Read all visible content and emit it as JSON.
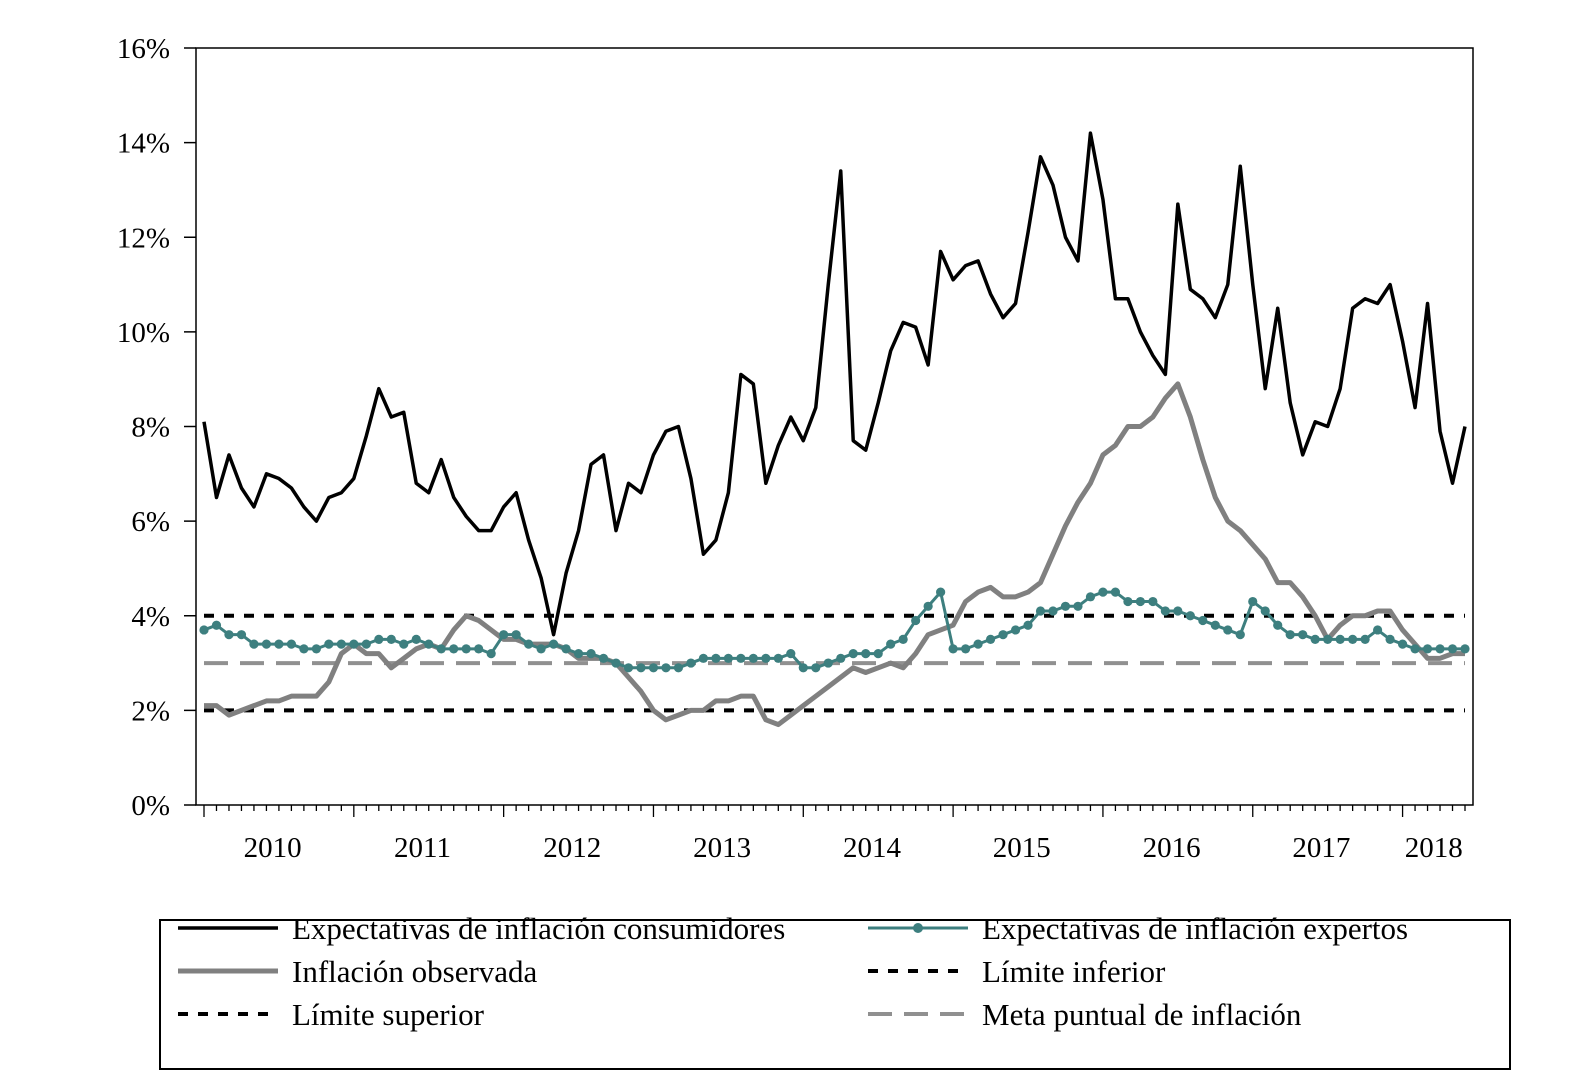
{
  "chart_data": {
    "type": "line",
    "title": "",
    "xlabel": "",
    "ylabel": "",
    "ylim": [
      0,
      16
    ],
    "y_ticks": [
      0,
      2,
      4,
      6,
      8,
      10,
      12,
      14,
      16
    ],
    "y_tick_labels": [
      "0%",
      "2%",
      "4%",
      "6%",
      "8%",
      "10%",
      "12%",
      "14%",
      "16%"
    ],
    "x_start": "2010-01",
    "x_end": "2018-06",
    "x_tick_labels": [
      "2010",
      "2011",
      "2012",
      "2013",
      "2014",
      "2015",
      "2016",
      "2017",
      "2018"
    ],
    "grid": false,
    "legend_position": "bottom",
    "series": [
      {
        "name": "Expectativas de inflación consumidores",
        "color": "#000000",
        "style": "solid-thick",
        "values": [
          8.1,
          6.5,
          7.4,
          6.7,
          6.3,
          7.0,
          6.9,
          6.7,
          6.3,
          6.0,
          6.5,
          6.6,
          6.9,
          7.8,
          8.8,
          8.2,
          8.3,
          6.8,
          6.6,
          7.3,
          6.5,
          6.1,
          5.8,
          5.8,
          6.3,
          6.6,
          5.6,
          4.8,
          3.6,
          4.9,
          5.8,
          7.2,
          7.4,
          5.8,
          6.8,
          6.6,
          7.4,
          7.9,
          8.0,
          6.9,
          5.3,
          5.6,
          6.6,
          9.1,
          8.9,
          6.8,
          7.6,
          8.2,
          7.7,
          8.4,
          11.0,
          13.4,
          7.7,
          7.5,
          8.5,
          9.6,
          10.2,
          10.1,
          9.3,
          11.7,
          11.1,
          11.4,
          11.5,
          10.8,
          10.3,
          10.6,
          12.1,
          13.7,
          13.1,
          12.0,
          11.5,
          14.2,
          12.8,
          10.7,
          10.7,
          10.0,
          9.5,
          9.1,
          12.7,
          10.9,
          10.7,
          10.3,
          11.0,
          13.5,
          11.0,
          8.8,
          10.5,
          8.5,
          7.4,
          8.1,
          8.0,
          8.8,
          10.5,
          10.7,
          10.6,
          11.0,
          9.8,
          8.4,
          10.6,
          7.9,
          6.8,
          8.0
        ]
      },
      {
        "name": "Expectativas de inflación expertos",
        "color": "#3d7f7f",
        "style": "solid-markers",
        "values": [
          3.7,
          3.8,
          3.6,
          3.6,
          3.4,
          3.4,
          3.4,
          3.4,
          3.3,
          3.3,
          3.4,
          3.4,
          3.4,
          3.4,
          3.5,
          3.5,
          3.4,
          3.5,
          3.4,
          3.3,
          3.3,
          3.3,
          3.3,
          3.2,
          3.6,
          3.6,
          3.4,
          3.3,
          3.4,
          3.3,
          3.2,
          3.2,
          3.1,
          3.0,
          2.9,
          2.9,
          2.9,
          2.9,
          2.9,
          3.0,
          3.1,
          3.1,
          3.1,
          3.1,
          3.1,
          3.1,
          3.1,
          3.2,
          2.9,
          2.9,
          3.0,
          3.1,
          3.2,
          3.2,
          3.2,
          3.4,
          3.5,
          3.9,
          4.2,
          4.5,
          3.3,
          3.3,
          3.4,
          3.5,
          3.6,
          3.7,
          3.8,
          4.1,
          4.1,
          4.2,
          4.2,
          4.4,
          4.5,
          4.5,
          4.3,
          4.3,
          4.3,
          4.1,
          4.1,
          4.0,
          3.9,
          3.8,
          3.7,
          3.6,
          4.3,
          4.1,
          3.8,
          3.6,
          3.6,
          3.5,
          3.5,
          3.5,
          3.5,
          3.5,
          3.7,
          3.5,
          3.4,
          3.3,
          3.3,
          3.3,
          3.3,
          3.3
        ]
      },
      {
        "name": "Inflación observada",
        "color": "#808080",
        "style": "solid-thick",
        "values": [
          2.1,
          2.1,
          1.9,
          2.0,
          2.1,
          2.2,
          2.2,
          2.3,
          2.3,
          2.3,
          2.6,
          3.2,
          3.4,
          3.2,
          3.2,
          2.9,
          3.1,
          3.3,
          3.4,
          3.3,
          3.7,
          4.0,
          3.9,
          3.7,
          3.5,
          3.5,
          3.4,
          3.4,
          3.4,
          3.3,
          3.1,
          3.1,
          3.1,
          3.0,
          2.7,
          2.4,
          2.0,
          1.8,
          1.9,
          2.0,
          2.0,
          2.2,
          2.2,
          2.3,
          2.3,
          1.8,
          1.7,
          1.9,
          2.1,
          2.3,
          2.5,
          2.7,
          2.9,
          2.8,
          2.9,
          3.0,
          2.9,
          3.2,
          3.6,
          3.7,
          3.8,
          4.3,
          4.5,
          4.6,
          4.4,
          4.4,
          4.5,
          4.7,
          5.3,
          5.9,
          6.4,
          6.8,
          7.4,
          7.6,
          8.0,
          8.0,
          8.2,
          8.6,
          8.9,
          8.2,
          7.3,
          6.5,
          6.0,
          5.8,
          5.5,
          5.2,
          4.7,
          4.7,
          4.4,
          4.0,
          3.5,
          3.8,
          4.0,
          4.0,
          4.1,
          4.1,
          3.7,
          3.4,
          3.1,
          3.1,
          3.2,
          3.2
        ]
      },
      {
        "name": "Límite inferior",
        "color": "#000000",
        "style": "dotted",
        "values": [
          2,
          2
        ]
      },
      {
        "name": "Límite superior",
        "color": "#000000",
        "style": "dotted",
        "values": [
          4,
          4
        ]
      },
      {
        "name": "Meta puntual de inflación",
        "color": "#909090",
        "style": "dashed",
        "values": [
          3,
          3
        ]
      }
    ]
  }
}
